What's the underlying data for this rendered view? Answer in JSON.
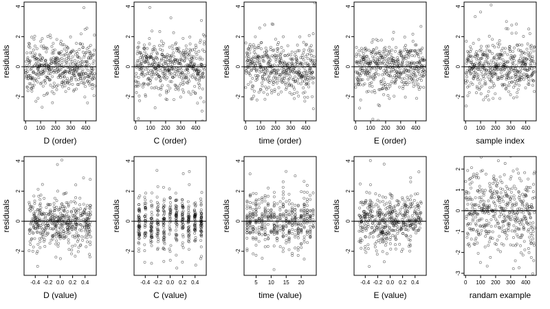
{
  "chart_data": [
    {
      "type": "scatter",
      "xlabel": "D (order)",
      "ylabel": "residuals",
      "xlim": [
        -10,
        470
      ],
      "ylim": [
        -3.6,
        4.3
      ],
      "xticks": [
        {
          "v": 0,
          "label": "0"
        },
        {
          "v": 100,
          "label": "100"
        },
        {
          "v": 200,
          "label": "200"
        },
        {
          "v": 300,
          "label": "300"
        },
        {
          "v": 400,
          "label": "400"
        }
      ],
      "yticks": [
        {
          "v": -2,
          "label": "-2"
        },
        {
          "v": 0,
          "label": "0"
        },
        {
          "v": 2,
          "label": "2"
        },
        {
          "v": 4,
          "label": "4"
        }
      ],
      "hline": 0,
      "gen": {
        "mode": "index",
        "n": 460,
        "xmin": 1,
        "xmax": 460,
        "sd": 0.85,
        "seed": 11
      }
    },
    {
      "type": "scatter",
      "xlabel": "C (order)",
      "ylabel": "residuals",
      "xlim": [
        -10,
        470
      ],
      "ylim": [
        -3.6,
        4.3
      ],
      "xticks": [
        {
          "v": 0,
          "label": "0"
        },
        {
          "v": 100,
          "label": "100"
        },
        {
          "v": 200,
          "label": "200"
        },
        {
          "v": 300,
          "label": "300"
        },
        {
          "v": 400,
          "label": "400"
        }
      ],
      "yticks": [
        {
          "v": -2,
          "label": "-2"
        },
        {
          "v": 0,
          "label": "0"
        },
        {
          "v": 2,
          "label": "2"
        },
        {
          "v": 4,
          "label": "4"
        }
      ],
      "hline": 0,
      "gen": {
        "mode": "index",
        "n": 460,
        "xmin": 1,
        "xmax": 460,
        "sd": 0.85,
        "seed": 12
      }
    },
    {
      "type": "scatter",
      "xlabel": "time (order)",
      "ylabel": "residuals",
      "xlim": [
        -10,
        470
      ],
      "ylim": [
        -3.6,
        4.3
      ],
      "xticks": [
        {
          "v": 0,
          "label": "0"
        },
        {
          "v": 100,
          "label": "100"
        },
        {
          "v": 200,
          "label": "200"
        },
        {
          "v": 300,
          "label": "300"
        },
        {
          "v": 400,
          "label": "400"
        }
      ],
      "yticks": [
        {
          "v": -2,
          "label": "-2"
        },
        {
          "v": 0,
          "label": "0"
        },
        {
          "v": 2,
          "label": "2"
        },
        {
          "v": 4,
          "label": "4"
        }
      ],
      "hline": 0,
      "gen": {
        "mode": "index",
        "n": 460,
        "xmin": 1,
        "xmax": 460,
        "sd": 0.85,
        "seed": 13
      }
    },
    {
      "type": "scatter",
      "xlabel": "E (order)",
      "ylabel": "residuals",
      "xlim": [
        -10,
        470
      ],
      "ylim": [
        -3.6,
        4.3
      ],
      "xticks": [
        {
          "v": 0,
          "label": "0"
        },
        {
          "v": 100,
          "label": "100"
        },
        {
          "v": 200,
          "label": "200"
        },
        {
          "v": 300,
          "label": "300"
        },
        {
          "v": 400,
          "label": "400"
        }
      ],
      "yticks": [
        {
          "v": -2,
          "label": "-2"
        },
        {
          "v": 0,
          "label": "0"
        },
        {
          "v": 2,
          "label": "2"
        },
        {
          "v": 4,
          "label": "4"
        }
      ],
      "hline": 0,
      "gen": {
        "mode": "index",
        "n": 460,
        "xmin": 1,
        "xmax": 460,
        "sd": 0.85,
        "seed": 14
      }
    },
    {
      "type": "scatter",
      "xlabel": "sample index",
      "ylabel": "residuals",
      "xlim": [
        -10,
        470
      ],
      "ylim": [
        -3.6,
        4.3
      ],
      "xticks": [
        {
          "v": 0,
          "label": "0"
        },
        {
          "v": 100,
          "label": "100"
        },
        {
          "v": 200,
          "label": "200"
        },
        {
          "v": 300,
          "label": "300"
        },
        {
          "v": 400,
          "label": "400"
        }
      ],
      "yticks": [
        {
          "v": -2,
          "label": "-2"
        },
        {
          "v": 0,
          "label": "0"
        },
        {
          "v": 2,
          "label": "2"
        },
        {
          "v": 4,
          "label": "4"
        }
      ],
      "hline": 0,
      "gen": {
        "mode": "index",
        "n": 460,
        "xmin": 1,
        "xmax": 460,
        "sd": 0.85,
        "seed": 15
      }
    },
    {
      "type": "scatter",
      "xlabel": "D (value)",
      "ylabel": "residuals",
      "xlim": [
        -0.58,
        0.58
      ],
      "ylim": [
        -3.6,
        4.3
      ],
      "xticks": [
        {
          "v": -0.4,
          "label": "-0.4"
        },
        {
          "v": -0.2,
          "label": "-0.2"
        },
        {
          "v": 0,
          "label": "0.0"
        },
        {
          "v": 0.2,
          "label": "0.2"
        },
        {
          "v": 0.4,
          "label": "0.4"
        }
      ],
      "yticks": [
        {
          "v": -2,
          "label": "-2"
        },
        {
          "v": 0,
          "label": "0"
        },
        {
          "v": 2,
          "label": "2"
        },
        {
          "v": 4,
          "label": "4"
        }
      ],
      "hline": 0,
      "gen": {
        "mode": "uniform",
        "n": 460,
        "xmin": -0.5,
        "xmax": 0.5,
        "sd": 0.85,
        "seed": 21
      }
    },
    {
      "type": "scatter",
      "xlabel": "C (value)",
      "ylabel": "residuals",
      "xlim": [
        -0.58,
        0.58
      ],
      "ylim": [
        -3.6,
        4.3
      ],
      "xticks": [
        {
          "v": -0.4,
          "label": "-0.4"
        },
        {
          "v": -0.2,
          "label": "-0.2"
        },
        {
          "v": 0,
          "label": "0.0"
        },
        {
          "v": 0.2,
          "label": "0.2"
        },
        {
          "v": 0.4,
          "label": "0.4"
        }
      ],
      "yticks": [
        {
          "v": -2,
          "label": "-2"
        },
        {
          "v": 0,
          "label": "0"
        },
        {
          "v": 2,
          "label": "2"
        },
        {
          "v": 4,
          "label": "4"
        }
      ],
      "hline": 0,
      "gen": {
        "mode": "discrete",
        "n": 460,
        "levels": [
          -0.5,
          -0.4,
          -0.3,
          -0.2,
          -0.1,
          0,
          0.1,
          0.2,
          0.3,
          0.4,
          0.5
        ],
        "jitter": 0.012,
        "sd": 0.85,
        "seed": 22
      }
    },
    {
      "type": "scatter",
      "xlabel": "time (value)",
      "ylabel": "residuals",
      "xlim": [
        1,
        25
      ],
      "ylim": [
        -3.6,
        4.3
      ],
      "xticks": [
        {
          "v": 5,
          "label": "5"
        },
        {
          "v": 10,
          "label": "10"
        },
        {
          "v": 15,
          "label": "15"
        },
        {
          "v": 20,
          "label": "20"
        }
      ],
      "yticks": [
        {
          "v": -2,
          "label": "-2"
        },
        {
          "v": 0,
          "label": "0"
        },
        {
          "v": 2,
          "label": "2"
        },
        {
          "v": 4,
          "label": "4"
        }
      ],
      "hline": 0,
      "gen": {
        "mode": "discrete",
        "n": 460,
        "levels": [
          2,
          3,
          4,
          5,
          6,
          7,
          8,
          9,
          10,
          11,
          12,
          13,
          14,
          15,
          16,
          17,
          18,
          19,
          20,
          21,
          22,
          23,
          24
        ],
        "jitter": 0.05,
        "sd": 0.85,
        "seed": 23
      }
    },
    {
      "type": "scatter",
      "xlabel": "E (value)",
      "ylabel": "residuals",
      "xlim": [
        -0.58,
        0.58
      ],
      "ylim": [
        -3.6,
        4.3
      ],
      "xticks": [
        {
          "v": -0.4,
          "label": "-0.4"
        },
        {
          "v": -0.2,
          "label": "-0.2"
        },
        {
          "v": 0,
          "label": "0.0"
        },
        {
          "v": 0.2,
          "label": "0.2"
        },
        {
          "v": 0.4,
          "label": "0.4"
        }
      ],
      "yticks": [
        {
          "v": -2,
          "label": "-2"
        },
        {
          "v": 0,
          "label": "0"
        },
        {
          "v": 2,
          "label": "2"
        },
        {
          "v": 4,
          "label": "4"
        }
      ],
      "hline": 0,
      "gen": {
        "mode": "uniform",
        "n": 460,
        "xmin": -0.5,
        "xmax": 0.5,
        "sd": 0.85,
        "seed": 24
      }
    },
    {
      "type": "scatter",
      "xlabel": "randam example",
      "ylabel": "residuals",
      "xlim": [
        -10,
        470
      ],
      "ylim": [
        -3.1,
        2.6
      ],
      "xticks": [
        {
          "v": 0,
          "label": "0"
        },
        {
          "v": 100,
          "label": "100"
        },
        {
          "v": 200,
          "label": "200"
        },
        {
          "v": 300,
          "label": "300"
        },
        {
          "v": 400,
          "label": "400"
        }
      ],
      "yticks": [
        {
          "v": -3,
          "label": "-3"
        },
        {
          "v": -2,
          "label": "-2"
        },
        {
          "v": -1,
          "label": "-1"
        },
        {
          "v": 0,
          "label": "0"
        },
        {
          "v": 1,
          "label": "1"
        },
        {
          "v": 2,
          "label": "2"
        }
      ],
      "hline": 0,
      "gen": {
        "mode": "index",
        "n": 460,
        "xmin": 1,
        "xmax": 460,
        "sd": 1.0,
        "seed": 31
      }
    }
  ]
}
